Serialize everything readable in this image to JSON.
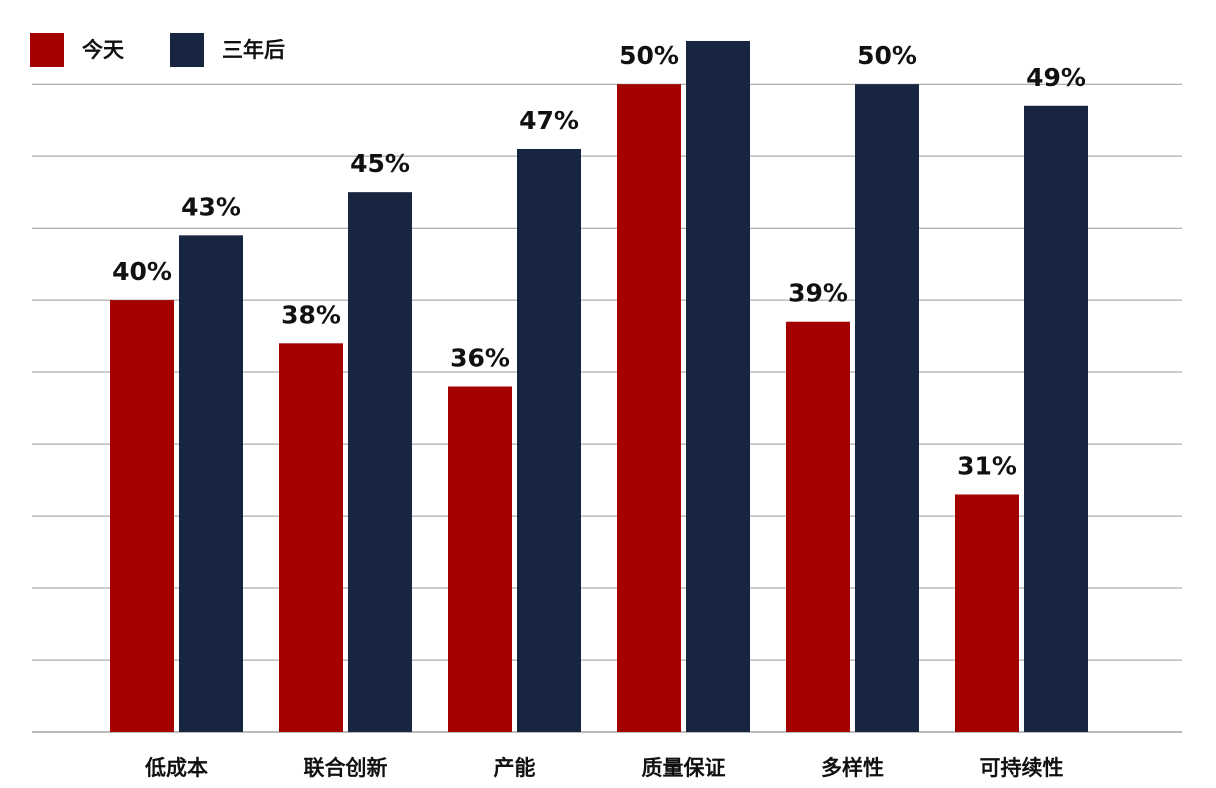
{
  "chart_data": {
    "type": "bar",
    "categories": [
      "低成本",
      "联合创新",
      "产能",
      "质量保证",
      "多样性",
      "可持续性"
    ],
    "series": [
      {
        "name": "今天",
        "color": "#a50000",
        "values": [
          40,
          38,
          36,
          50,
          39,
          31
        ],
        "value_labels": [
          "40%",
          "38%",
          "36%",
          "50%",
          "39%",
          "31%"
        ]
      },
      {
        "name": "三年后",
        "color": "#172541",
        "values": [
          43,
          45,
          47,
          52,
          50,
          49
        ],
        "value_labels": [
          "43%",
          "45%",
          "47%",
          null,
          "50%",
          "49%"
        ]
      }
    ],
    "ylim": [
      20,
      52
    ],
    "yticks": [
      20,
      23.33,
      26.67,
      30,
      33.33,
      36.67,
      40,
      43.33,
      46.67,
      50
    ],
    "grid": true,
    "legend": "top-left"
  }
}
